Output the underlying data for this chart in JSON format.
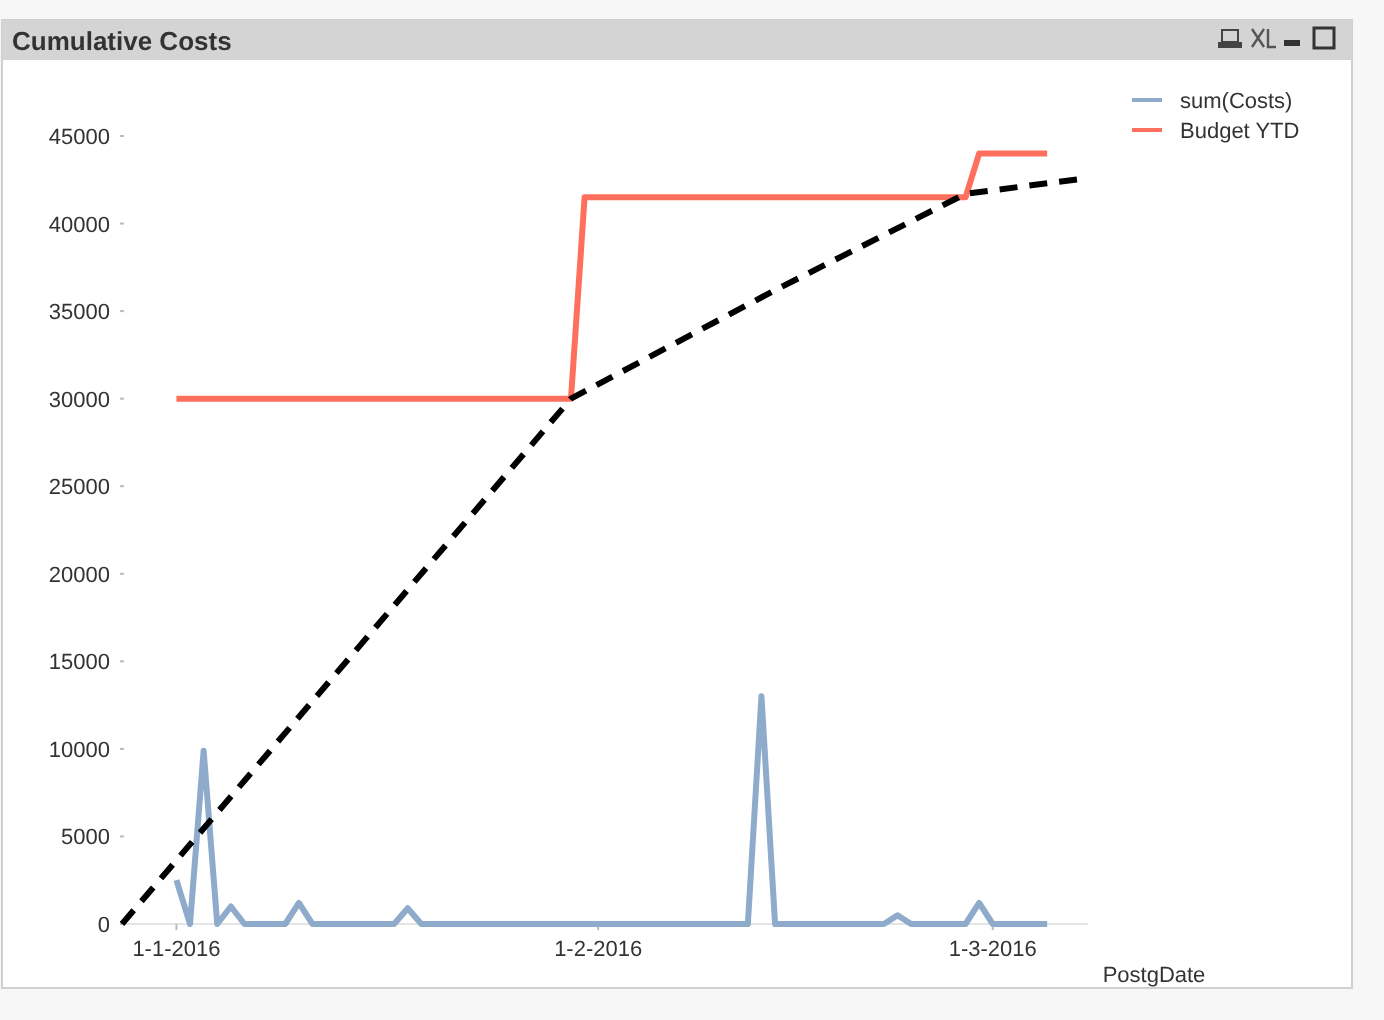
{
  "chart_data": {
    "type": "line",
    "title": "Cumulative Costs",
    "xlabel": "PostgDate",
    "xlim": [
      "2015-12-28",
      "2016-03-08"
    ],
    "xticks": [
      {
        "value": "2016-01-01",
        "label": "1-1-2016"
      },
      {
        "value": "2016-02-01",
        "label": "1-2-2016"
      },
      {
        "value": "2016-03-01",
        "label": "1-3-2016"
      }
    ],
    "ylim": [
      0,
      45000
    ],
    "yticks": [
      0,
      5000,
      10000,
      15000,
      20000,
      25000,
      30000,
      35000,
      40000,
      45000
    ],
    "grid": false,
    "legend": "top right",
    "marker": "none",
    "series": [
      {
        "name": "sum(Costs)",
        "color": "#8eabcb",
        "x": [
          "2016-01-01",
          "2016-01-02",
          "2016-01-03",
          "2016-01-04",
          "2016-01-05",
          "2016-01-06",
          "2016-01-09",
          "2016-01-10",
          "2016-01-11",
          "2016-01-17",
          "2016-01-18",
          "2016-01-19",
          "2016-02-12",
          "2016-02-13",
          "2016-02-14",
          "2016-02-22",
          "2016-02-23",
          "2016-02-24",
          "2016-02-28",
          "2016-02-29",
          "2016-03-01",
          "2016-03-05"
        ],
        "values": [
          2500,
          0,
          9900,
          0,
          1000,
          0,
          0,
          1200,
          0,
          0,
          900,
          0,
          0,
          13000,
          0,
          0,
          500,
          0,
          0,
          1200,
          0,
          0
        ]
      },
      {
        "name": "Budget YTD",
        "color": "#ff6f5e",
        "x": [
          "2016-01-01",
          "2016-01-30",
          "2016-01-31",
          "2016-02-28",
          "2016-02-29",
          "2016-03-05"
        ],
        "values": [
          30000,
          30000,
          41500,
          41500,
          44000,
          44000
        ]
      },
      {
        "color": "#000000",
        "line_style": "dashed",
        "x": [
          "2015-12-28",
          "2016-01-30",
          "2016-02-14",
          "2016-02-28",
          "2016-03-08"
        ],
        "values": [
          0,
          30000,
          36200,
          41700,
          42600
        ]
      }
    ]
  }
}
